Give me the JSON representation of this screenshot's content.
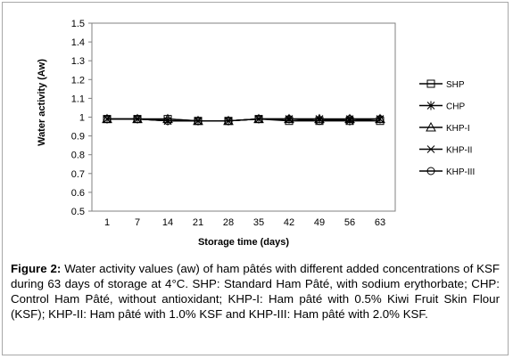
{
  "figure": {
    "label": "Figure 2:",
    "caption": "Water activity values (aw) of ham pâtés with different added concentrations of KSF during 63 days of storage at 4°C. SHP: Standard Ham Pâté, with sodium erythorbate; CHP: Control Ham Pâté, without antioxidant; KHP-I: Ham pâté with 0.5% Kiwi Fruit Skin Flour (KSF); KHP-II: Ham pâté with 1.0% KSF and KHP-III: Ham pâté with 2.0% KSF."
  },
  "chart_data": {
    "type": "line",
    "xlabel": "Storage time (days)",
    "ylabel": "Water activity (Aw)",
    "categories": [
      "1",
      "7",
      "14",
      "21",
      "28",
      "35",
      "42",
      "49",
      "56",
      "63"
    ],
    "ylim": [
      0.5,
      1.5
    ],
    "yticks": [
      "0.5",
      "0.6",
      "0.7",
      "0.8",
      "0.9",
      "1",
      "1.1",
      "1.2",
      "1.3",
      "1.4",
      "1.5"
    ],
    "grid": false,
    "legend_position": "right",
    "series": [
      {
        "name": "SHP",
        "marker": "square",
        "values": [
          0.99,
          0.99,
          0.99,
          0.98,
          0.98,
          0.99,
          0.98,
          0.98,
          0.98,
          0.98
        ]
      },
      {
        "name": "CHP",
        "marker": "asterisk",
        "values": [
          0.99,
          0.99,
          0.98,
          0.98,
          0.98,
          0.99,
          0.99,
          0.99,
          0.98,
          0.99
        ]
      },
      {
        "name": "KHP-I",
        "marker": "triangle",
        "values": [
          0.99,
          0.99,
          0.99,
          0.98,
          0.98,
          0.99,
          0.99,
          0.99,
          0.99,
          0.99
        ]
      },
      {
        "name": "KHP-II",
        "marker": "x",
        "values": [
          0.99,
          0.99,
          0.98,
          0.98,
          0.98,
          0.99,
          0.99,
          0.99,
          0.99,
          0.99
        ]
      },
      {
        "name": "KHP-III",
        "marker": "circle",
        "values": [
          0.99,
          0.99,
          0.98,
          0.98,
          0.98,
          0.99,
          0.99,
          0.98,
          0.99,
          0.99
        ]
      }
    ]
  }
}
